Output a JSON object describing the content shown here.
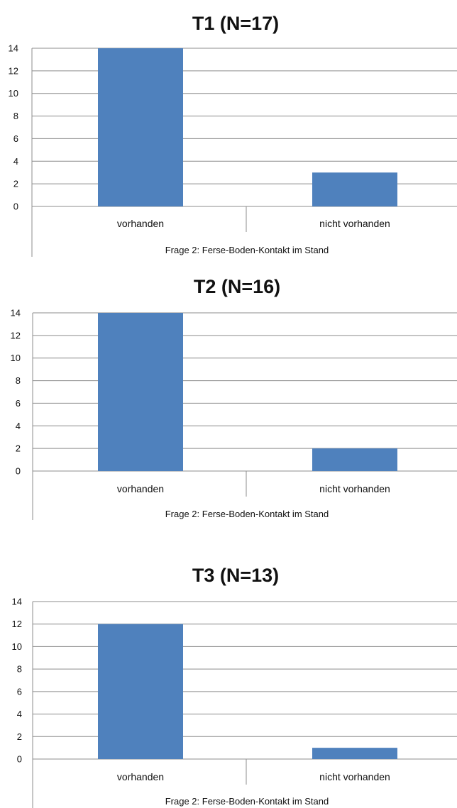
{
  "chart_data": [
    {
      "type": "bar",
      "title": "T1 (N=17)",
      "categories": [
        "vorhanden",
        "nicht vorhanden"
      ],
      "values": [
        14,
        3
      ],
      "xlabel": "Frage 2: Ferse-Boden-Kontakt im Stand",
      "ylabel": "",
      "ylim": [
        0,
        14
      ],
      "yticks": [
        0,
        2,
        4,
        6,
        8,
        10,
        12,
        14
      ],
      "ytick_labels": [
        "0",
        "2",
        "4",
        "6",
        "8",
        "10",
        "12",
        "14"
      ],
      "grid": true,
      "legend": "none",
      "bar_color": "#4f81bd"
    },
    {
      "type": "bar",
      "title": "T2 (N=16)",
      "categories": [
        "vorhanden",
        "nicht vorhanden"
      ],
      "values": [
        14,
        2
      ],
      "xlabel": "Frage 2: Ferse-Boden-Kontakt im Stand",
      "ylabel": "",
      "ylim": [
        0,
        14
      ],
      "yticks": [
        0,
        2,
        4,
        6,
        8,
        10,
        12,
        14
      ],
      "ytick_labels": [
        "0",
        "2",
        "4",
        "6",
        "8",
        "10",
        "12",
        "14"
      ],
      "grid": true,
      "legend": "none",
      "bar_color": "#4f81bd"
    },
    {
      "type": "bar",
      "title": "T3 (N=13)",
      "categories": [
        "vorhanden",
        "nicht vorhanden"
      ],
      "values": [
        12,
        1
      ],
      "xlabel": "Frage 2: Ferse-Boden-Kontakt im Stand",
      "ylabel": "",
      "ylim": [
        0,
        14
      ],
      "yticks": [
        0,
        2,
        4,
        6,
        8,
        10,
        12,
        14
      ],
      "ytick_labels": [
        "0",
        "2",
        "4",
        "6",
        "8",
        "10",
        "12",
        "14"
      ],
      "grid": true,
      "legend": "none",
      "bar_color": "#4f81bd"
    }
  ]
}
